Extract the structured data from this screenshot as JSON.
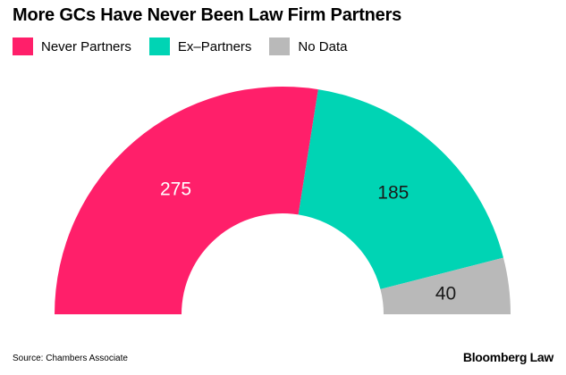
{
  "chart_data": {
    "type": "pie",
    "variant": "semicircle-donut",
    "title": "More GCs Have Never Been Law Firm Partners",
    "categories": [
      "Never Partners",
      "Ex–Partners",
      "No Data"
    ],
    "values": [
      275,
      185,
      40
    ],
    "colors": [
      "#ff1f6a",
      "#00d4b4",
      "#b9b9b9"
    ],
    "data_labels": [
      "275",
      "185",
      "40"
    ],
    "legend_position": "top-left"
  },
  "footer": {
    "source": "Source: Chambers Associate",
    "logo": "Bloomberg Law"
  }
}
